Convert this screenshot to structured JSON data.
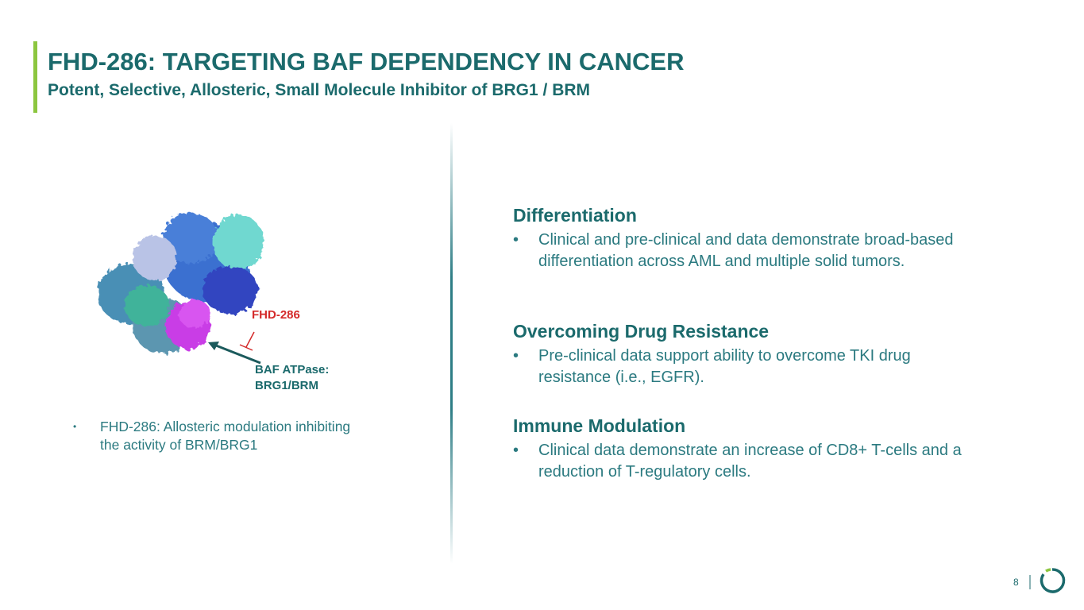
{
  "header": {
    "title": "FHD-286: TARGETING BAF DEPENDENCY IN CANCER",
    "subtitle": "Potent, Selective, Allosteric, Small Molecule Inhibitor of BRG1 / BRM"
  },
  "figure": {
    "drug_label": "FHD-286",
    "target_label_lines": [
      "BAF ATPase:",
      "BRG1/BRM"
    ]
  },
  "left_bullets": [
    "FHD-286: Allosteric modulation inhibiting the activity of BRM/BRG1"
  ],
  "sections": [
    {
      "heading": "Differentiation",
      "bullets": [
        "Clinical and pre-clinical and data demonstrate broad-based differentiation across AML and multiple solid tumors."
      ]
    },
    {
      "heading": "Overcoming Drug Resistance",
      "bullets": [
        "Pre-clinical data support ability to overcome TKI drug resistance (i.e., EGFR)."
      ]
    },
    {
      "heading": "Immune Modulation",
      "bullets": [
        "Clinical data demonstrate an increase of CD8+ T-cells and a reduction of T-regulatory cells."
      ]
    }
  ],
  "page_number": "8"
}
